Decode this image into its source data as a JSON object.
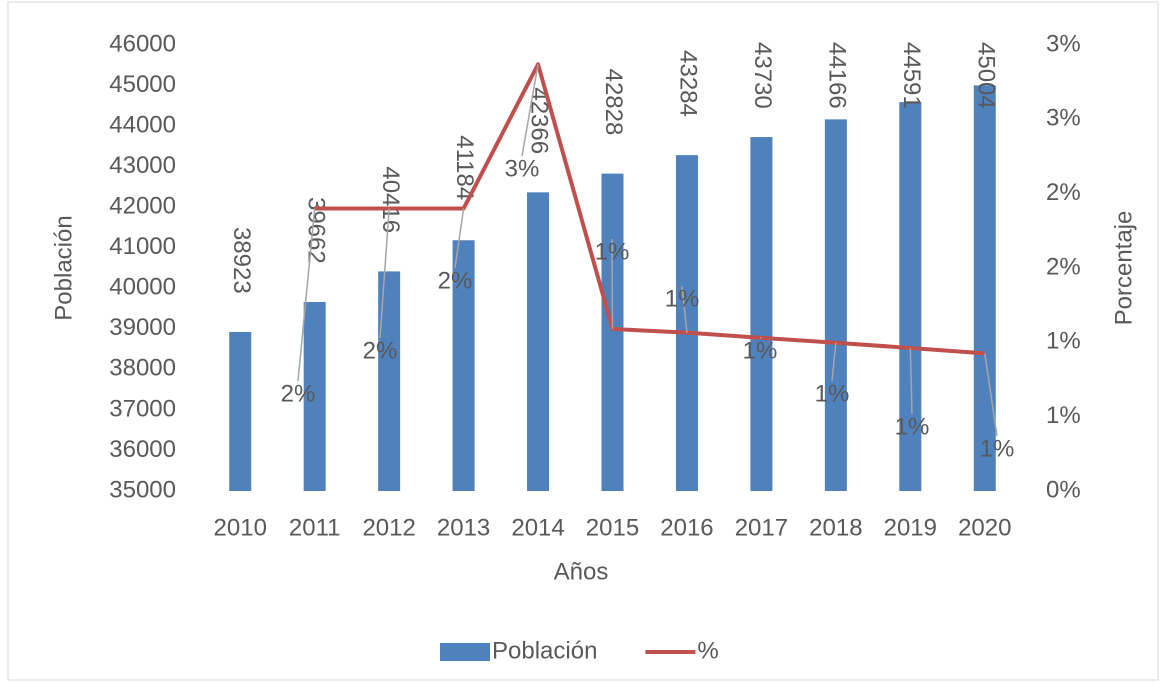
{
  "chart_data": {
    "type": "bar_line",
    "x_label": "Años",
    "y_label": "Población",
    "y2_label": "Porcentaje",
    "categories": [
      "2010",
      "2011",
      "2012",
      "2013",
      "2014",
      "2015",
      "2016",
      "2017",
      "2018",
      "2019",
      "2020"
    ],
    "series": [
      {
        "name": "Población",
        "color": "#4f81bd",
        "type": "bar",
        "values": [
          38923,
          39662,
          40416,
          41184,
          42366,
          42828,
          43284,
          43730,
          44166,
          44591,
          45004
        ]
      },
      {
        "name": "%",
        "color": "#c0504d",
        "type": "line",
        "axis": "y2",
        "values": [
          null,
          1.9,
          1.9,
          1.9,
          2.87,
          1.09,
          1.065,
          1.03,
          0.997,
          0.962,
          0.926
        ],
        "value_labels": [
          null,
          "2%",
          "2%",
          "2%",
          "3%",
          "1%",
          "1%",
          "1%",
          "1%",
          "1%",
          "1%"
        ]
      }
    ],
    "ylim": [
      35000,
      46000
    ],
    "yticks": [
      35000,
      36000,
      37000,
      38000,
      39000,
      40000,
      41000,
      42000,
      43000,
      44000,
      45000,
      46000
    ],
    "y2lim": [
      0,
      3
    ],
    "y2ticks": [
      {
        "value": 0,
        "label": "0%"
      },
      {
        "value": 0.5,
        "label": "1%"
      },
      {
        "value": 1,
        "label": "1%"
      },
      {
        "value": 1.5,
        "label": "2%"
      },
      {
        "value": 2,
        "label": "2%"
      },
      {
        "value": 2.5,
        "label": "3%"
      },
      {
        "value": 3,
        "label": "3%"
      }
    ],
    "grid": false,
    "legend": "bottom"
  }
}
